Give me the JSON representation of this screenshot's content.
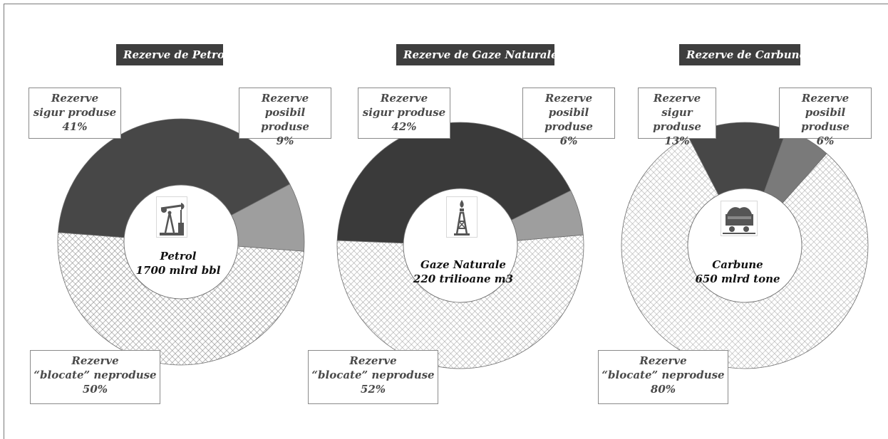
{
  "colors": {
    "sigur": "#474747",
    "posibil": "#9e9e9e",
    "blocate_hatch": "#8c8c8c",
    "title_bg": "#3e3e3e"
  },
  "chart_data": [
    {
      "type": "pie",
      "variant": "donut",
      "title": "Rezerve de Petrol",
      "center": {
        "name": "Petrol",
        "amount": "1700 mlrd bbl"
      },
      "icon": "oil-pump-icon",
      "slices": [
        {
          "label_line1": "Rezerve",
          "label_line2": "sigur produse",
          "percent_label": "41%",
          "value": 41,
          "color": "#474747",
          "pattern": "solid"
        },
        {
          "label_line1": "Rezerve",
          "label_line2": "posibil produse",
          "percent_label": "9%",
          "value": 9,
          "color": "#9e9e9e",
          "pattern": "solid"
        },
        {
          "label_line1": "Rezerve",
          "label_line2": "“blocate” neproduse",
          "percent_label": "50%",
          "value": 50,
          "color": "#8c8c8c",
          "pattern": "crosshatch"
        }
      ]
    },
    {
      "type": "pie",
      "variant": "donut",
      "title": "Rezerve de Gaze Naturale",
      "center": {
        "name": "Gaze Naturale",
        "amount": "220 trilioane m3"
      },
      "icon": "gas-derrick-icon",
      "slices": [
        {
          "label_line1": "Rezerve",
          "label_line2": "sigur produse",
          "percent_label": "42%",
          "value": 42,
          "color": "#3a3a3a",
          "pattern": "solid"
        },
        {
          "label_line1": "Rezerve",
          "label_line2": "posibil produse",
          "percent_label": "6%",
          "value": 6,
          "color": "#9e9e9e",
          "pattern": "solid"
        },
        {
          "label_line1": "Rezerve",
          "label_line2": "“blocate” neproduse",
          "percent_label": "52%",
          "value": 52,
          "color": "#a8a8a8",
          "pattern": "crosshatch"
        }
      ]
    },
    {
      "type": "pie",
      "variant": "donut",
      "title": "Rezerve de Carbune",
      "center": {
        "name": "Carbune",
        "amount": "650 mlrd tone"
      },
      "icon": "coal-cart-icon",
      "slices": [
        {
          "label_line1": "Rezerve",
          "label_line2": "sigur produse",
          "percent_label": "13%",
          "value": 13,
          "color": "#474747",
          "pattern": "solid"
        },
        {
          "label_line1": "Rezerve",
          "label_line2": "posibil produse",
          "percent_label": "6%",
          "value": 6,
          "color": "#7a7a7a",
          "pattern": "solid"
        },
        {
          "label_line1": "Rezerve",
          "label_line2": "“blocate” neproduse",
          "percent_label": "80%",
          "value": 80,
          "color": "#b0b0b0",
          "pattern": "crosshatch"
        }
      ]
    }
  ]
}
